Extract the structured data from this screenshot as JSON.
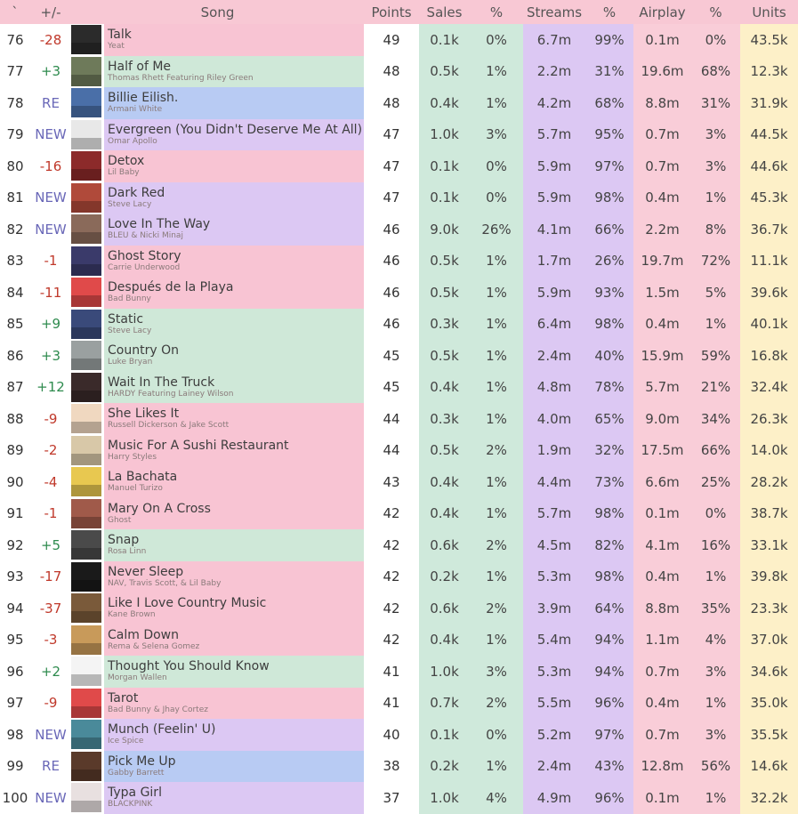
{
  "header": {
    "rank": "`",
    "change": "+/-",
    "song": "Song",
    "points": "Points",
    "sales": "Sales",
    "sales_pct": "%",
    "streams": "Streams",
    "streams_pct": "%",
    "airplay": "Airplay",
    "airplay_pct": "%",
    "units": "Units"
  },
  "colors": {
    "pink": "#f8c4d3",
    "green": "#cfe8d8",
    "blue": "#b8cbf3",
    "purple": "#dcc8f3",
    "sales_col": "#cfe9db",
    "streams_col": "#dcc8f3",
    "airplay_col": "#f9cdd8",
    "units_col": "#fdf0c8",
    "header_bg": "#f8c8d4"
  },
  "rows": [
    {
      "rank": "76",
      "change": "-28",
      "title": "Talk",
      "artist": "Yeat",
      "points": "49",
      "sales": "0.1k",
      "sales_pct": "0%",
      "streams": "6.7m",
      "streams_pct": "99%",
      "airplay": "0.1m",
      "airplay_pct": "0%",
      "units": "43.5k",
      "color": "pink",
      "cover": "#2b2b2b"
    },
    {
      "rank": "77",
      "change": "+3",
      "title": "Half of Me",
      "artist": "Thomas Rhett Featuring Riley Green",
      "points": "48",
      "sales": "0.5k",
      "sales_pct": "1%",
      "streams": "2.2m",
      "streams_pct": "31%",
      "airplay": "19.6m",
      "airplay_pct": "68%",
      "units": "12.3k",
      "color": "green",
      "cover": "#6e7a5a"
    },
    {
      "rank": "78",
      "change": "RE",
      "title": "Billie Eilish.",
      "artist": "Armani White",
      "points": "48",
      "sales": "0.4k",
      "sales_pct": "1%",
      "streams": "4.2m",
      "streams_pct": "68%",
      "airplay": "8.8m",
      "airplay_pct": "31%",
      "units": "31.9k",
      "color": "blue",
      "cover": "#4a6fa8"
    },
    {
      "rank": "79",
      "change": "NEW",
      "title": "Evergreen (You Didn't Deserve Me At All)",
      "artist": "Omar Apollo",
      "points": "47",
      "sales": "1.0k",
      "sales_pct": "3%",
      "streams": "5.7m",
      "streams_pct": "95%",
      "airplay": "0.7m",
      "airplay_pct": "3%",
      "units": "44.5k",
      "color": "purple",
      "cover": "#e8e8e8"
    },
    {
      "rank": "80",
      "change": "-16",
      "title": "Detox",
      "artist": "Lil Baby",
      "points": "47",
      "sales": "0.1k",
      "sales_pct": "0%",
      "streams": "5.9m",
      "streams_pct": "97%",
      "airplay": "0.7m",
      "airplay_pct": "3%",
      "units": "44.6k",
      "color": "pink",
      "cover": "#8c2a2a"
    },
    {
      "rank": "81",
      "change": "NEW",
      "title": "Dark Red",
      "artist": "Steve Lacy",
      "points": "47",
      "sales": "0.1k",
      "sales_pct": "0%",
      "streams": "5.9m",
      "streams_pct": "98%",
      "airplay": "0.4m",
      "airplay_pct": "1%",
      "units": "45.3k",
      "color": "purple",
      "cover": "#b04a3a"
    },
    {
      "rank": "82",
      "change": "NEW",
      "title": "Love In The Way",
      "artist": "BLEU & Nicki Minaj",
      "points": "46",
      "sales": "9.0k",
      "sales_pct": "26%",
      "streams": "4.1m",
      "streams_pct": "66%",
      "airplay": "2.2m",
      "airplay_pct": "8%",
      "units": "36.7k",
      "color": "purple",
      "cover": "#8a6a5a"
    },
    {
      "rank": "83",
      "change": "-1",
      "title": "Ghost Story",
      "artist": "Carrie Underwood",
      "points": "46",
      "sales": "0.5k",
      "sales_pct": "1%",
      "streams": "1.7m",
      "streams_pct": "26%",
      "airplay": "19.7m",
      "airplay_pct": "72%",
      "units": "11.1k",
      "color": "pink",
      "cover": "#3a3a6a"
    },
    {
      "rank": "84",
      "change": "-11",
      "title": "Después de la Playa",
      "artist": "Bad Bunny",
      "points": "46",
      "sales": "0.5k",
      "sales_pct": "1%",
      "streams": "5.9m",
      "streams_pct": "93%",
      "airplay": "1.5m",
      "airplay_pct": "5%",
      "units": "39.6k",
      "color": "pink",
      "cover": "#e04a4a"
    },
    {
      "rank": "85",
      "change": "+9",
      "title": "Static",
      "artist": "Steve Lacy",
      "points": "46",
      "sales": "0.3k",
      "sales_pct": "1%",
      "streams": "6.4m",
      "streams_pct": "98%",
      "airplay": "0.4m",
      "airplay_pct": "1%",
      "units": "40.1k",
      "color": "green",
      "cover": "#3a4a7a"
    },
    {
      "rank": "86",
      "change": "+3",
      "title": "Country On",
      "artist": "Luke Bryan",
      "points": "45",
      "sales": "0.5k",
      "sales_pct": "1%",
      "streams": "2.4m",
      "streams_pct": "40%",
      "airplay": "15.9m",
      "airplay_pct": "59%",
      "units": "16.8k",
      "color": "green",
      "cover": "#9aa0a0"
    },
    {
      "rank": "87",
      "change": "+12",
      "title": "Wait In The Truck",
      "artist": "HARDY Featuring Lainey Wilson",
      "points": "45",
      "sales": "0.4k",
      "sales_pct": "1%",
      "streams": "4.8m",
      "streams_pct": "78%",
      "airplay": "5.7m",
      "airplay_pct": "21%",
      "units": "32.4k",
      "color": "green",
      "cover": "#3a2a2a"
    },
    {
      "rank": "88",
      "change": "-9",
      "title": "She Likes It",
      "artist": "Russell Dickerson & Jake Scott",
      "points": "44",
      "sales": "0.3k",
      "sales_pct": "1%",
      "streams": "4.0m",
      "streams_pct": "65%",
      "airplay": "9.0m",
      "airplay_pct": "34%",
      "units": "26.3k",
      "color": "pink",
      "cover": "#f0d8c0"
    },
    {
      "rank": "89",
      "change": "-2",
      "title": "Music For A Sushi Restaurant",
      "artist": "Harry Styles",
      "points": "44",
      "sales": "0.5k",
      "sales_pct": "2%",
      "streams": "1.9m",
      "streams_pct": "32%",
      "airplay": "17.5m",
      "airplay_pct": "66%",
      "units": "14.0k",
      "color": "pink",
      "cover": "#d8c8a8"
    },
    {
      "rank": "90",
      "change": "-4",
      "title": "La Bachata",
      "artist": "Manuel Turizo",
      "points": "43",
      "sales": "0.4k",
      "sales_pct": "1%",
      "streams": "4.4m",
      "streams_pct": "73%",
      "airplay": "6.6m",
      "airplay_pct": "25%",
      "units": "28.2k",
      "color": "pink",
      "cover": "#e8c850"
    },
    {
      "rank": "91",
      "change": "-1",
      "title": "Mary On A Cross",
      "artist": "Ghost",
      "points": "42",
      "sales": "0.4k",
      "sales_pct": "1%",
      "streams": "5.7m",
      "streams_pct": "98%",
      "airplay": "0.1m",
      "airplay_pct": "0%",
      "units": "38.7k",
      "color": "pink",
      "cover": "#a05a4a"
    },
    {
      "rank": "92",
      "change": "+5",
      "title": "Snap",
      "artist": "Rosa Linn",
      "points": "42",
      "sales": "0.6k",
      "sales_pct": "2%",
      "streams": "4.5m",
      "streams_pct": "82%",
      "airplay": "4.1m",
      "airplay_pct": "16%",
      "units": "33.1k",
      "color": "green",
      "cover": "#4a4a4a"
    },
    {
      "rank": "93",
      "change": "-17",
      "title": "Never Sleep",
      "artist": "NAV, Travis Scott, & Lil Baby",
      "points": "42",
      "sales": "0.2k",
      "sales_pct": "1%",
      "streams": "5.3m",
      "streams_pct": "98%",
      "airplay": "0.4m",
      "airplay_pct": "1%",
      "units": "39.8k",
      "color": "pink",
      "cover": "#1a1a1a"
    },
    {
      "rank": "94",
      "change": "-37",
      "title": "Like I Love Country Music",
      "artist": "Kane Brown",
      "points": "42",
      "sales": "0.6k",
      "sales_pct": "2%",
      "streams": "3.9m",
      "streams_pct": "64%",
      "airplay": "8.8m",
      "airplay_pct": "35%",
      "units": "23.3k",
      "color": "pink",
      "cover": "#7a5a3a"
    },
    {
      "rank": "95",
      "change": "-3",
      "title": "Calm Down",
      "artist": "Rema & Selena Gomez",
      "points": "42",
      "sales": "0.4k",
      "sales_pct": "1%",
      "streams": "5.4m",
      "streams_pct": "94%",
      "airplay": "1.1m",
      "airplay_pct": "4%",
      "units": "37.0k",
      "color": "pink",
      "cover": "#c89a5a"
    },
    {
      "rank": "96",
      "change": "+2",
      "title": "Thought You Should Know",
      "artist": "Morgan Wallen",
      "points": "41",
      "sales": "1.0k",
      "sales_pct": "3%",
      "streams": "5.3m",
      "streams_pct": "94%",
      "airplay": "0.7m",
      "airplay_pct": "3%",
      "units": "34.6k",
      "color": "green",
      "cover": "#f4f4f4"
    },
    {
      "rank": "97",
      "change": "-9",
      "title": "Tarot",
      "artist": "Bad Bunny & Jhay Cortez",
      "points": "41",
      "sales": "0.7k",
      "sales_pct": "2%",
      "streams": "5.5m",
      "streams_pct": "96%",
      "airplay": "0.4m",
      "airplay_pct": "1%",
      "units": "35.0k",
      "color": "pink",
      "cover": "#e04a4a"
    },
    {
      "rank": "98",
      "change": "NEW",
      "title": "Munch (Feelin' U)",
      "artist": "Ice Spice",
      "points": "40",
      "sales": "0.1k",
      "sales_pct": "0%",
      "streams": "5.2m",
      "streams_pct": "97%",
      "airplay": "0.7m",
      "airplay_pct": "3%",
      "units": "35.5k",
      "color": "purple",
      "cover": "#4a8a9a"
    },
    {
      "rank": "99",
      "change": "RE",
      "title": "Pick Me Up",
      "artist": "Gabby Barrett",
      "points": "38",
      "sales": "0.2k",
      "sales_pct": "1%",
      "streams": "2.4m",
      "streams_pct": "43%",
      "airplay": "12.8m",
      "airplay_pct": "56%",
      "units": "14.6k",
      "color": "blue",
      "cover": "#5a3a2a"
    },
    {
      "rank": "100",
      "change": "NEW",
      "title": "Typa Girl",
      "artist": "BLACKPINK",
      "points": "37",
      "sales": "1.0k",
      "sales_pct": "4%",
      "streams": "4.9m",
      "streams_pct": "96%",
      "airplay": "0.1m",
      "airplay_pct": "1%",
      "units": "32.2k",
      "color": "purple",
      "cover": "#e8e0e0"
    }
  ]
}
